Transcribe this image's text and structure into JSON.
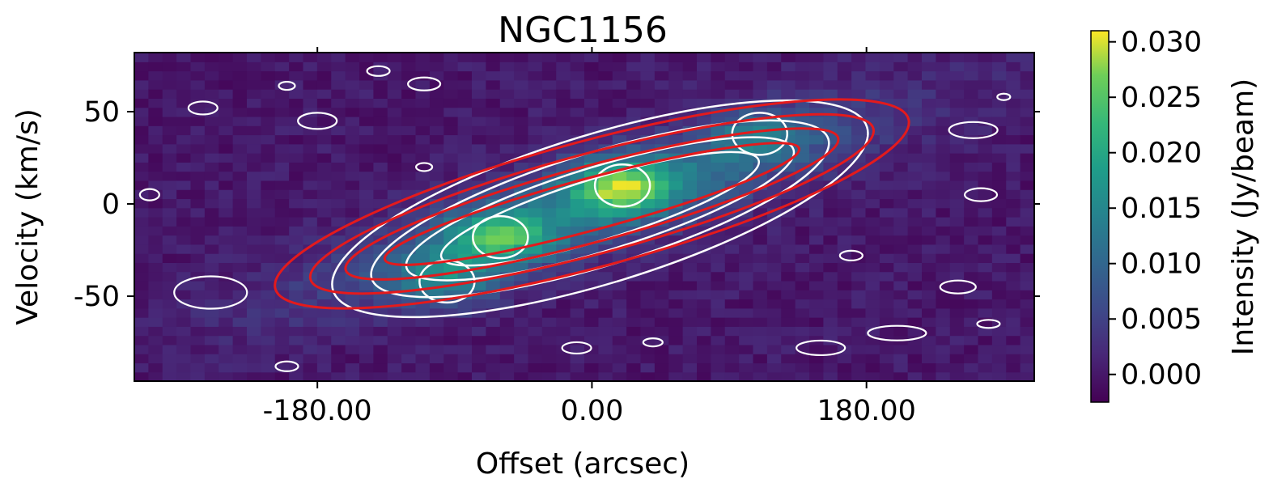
{
  "chart_data": {
    "type": "heatmap",
    "title": "NGC1156",
    "xlabel": "Offset (arcsec)",
    "ylabel": "Velocity (km/s)",
    "xlim": [
      -300,
      290
    ],
    "ylim": [
      -96,
      82
    ],
    "xticks": [
      -180,
      0,
      180
    ],
    "xtick_labels": [
      "-180.00",
      "0.00",
      "180.00"
    ],
    "yticks": [
      50,
      0,
      -50
    ],
    "ytick_labels": [
      "50",
      "0",
      "-50"
    ],
    "colorbar": {
      "label": "Intensity (Jy/beam)",
      "min": -0.0025,
      "max": 0.031,
      "ticks": [
        0.0,
        0.005,
        0.01,
        0.015,
        0.02,
        0.025,
        0.03
      ],
      "tick_labels": [
        "0.000",
        "0.005",
        "0.010",
        "0.015",
        "0.020",
        "0.025",
        "0.030"
      ],
      "colormap": "viridis"
    },
    "emission_peaks": [
      {
        "x": 20,
        "v": 10,
        "intensity": 0.029
      },
      {
        "x": -60,
        "v": -18,
        "intensity": 0.025
      },
      {
        "x": -95,
        "v": -42,
        "intensity": 0.021
      },
      {
        "x": 110,
        "v": 38,
        "intensity": 0.018
      }
    ],
    "model_contours": {
      "color": "#e41a1c",
      "axis_angle_deg": 15,
      "center": [
        0,
        0
      ],
      "levels": 4
    },
    "data_contours": {
      "color": "#ffffff"
    },
    "grid": false
  }
}
